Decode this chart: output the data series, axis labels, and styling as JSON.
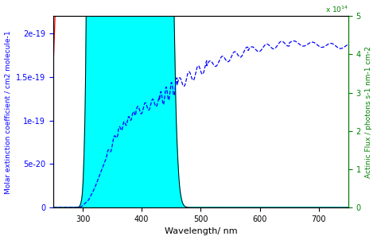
{
  "xlabel": "Wavelength/ nm",
  "ylabel_left": "Molar extinction coefficient / cm2 molecule-1",
  "ylabel_right": "Actinic Flux / photons s-1 nm-1 cm-2",
  "xlim": [
    250,
    750
  ],
  "ylim_left": [
    0,
    2.2e-19
  ],
  "ylim_right": [
    0,
    500000000000000.0
  ],
  "left_color": "blue",
  "right_color": "green",
  "bg_color": "white",
  "yticks_left": [
    0,
    5e-20,
    1e-19,
    1.5e-19,
    2e-19
  ],
  "yticks_right": [
    0,
    100000000000000.0,
    200000000000000.0,
    300000000000000.0,
    400000000000000.0,
    500000000000000.0
  ]
}
